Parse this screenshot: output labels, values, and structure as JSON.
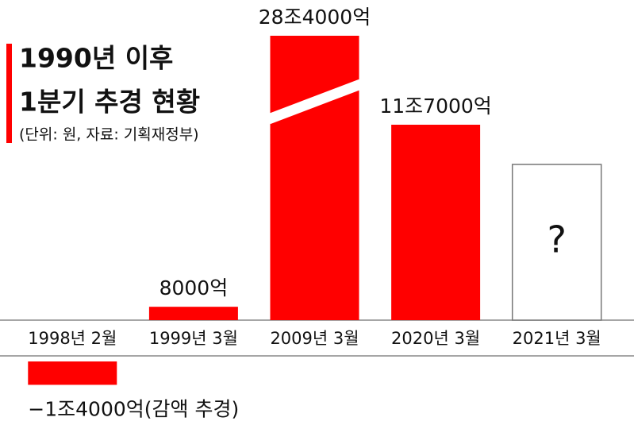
{
  "chart_data": {
    "type": "bar",
    "title": [
      "1990년 이후",
      "1분기 추경 현황"
    ],
    "subtitle": "(단위: 원, 자료: 기획재정부)",
    "categories": [
      "1998년 2월",
      "1999년 3월",
      "2009년 3월",
      "2020년 3월",
      "2021년 3월"
    ],
    "values": [
      -14000,
      8000,
      284000,
      117000,
      null
    ],
    "value_labels": [
      "−1조4000억(감액 추경)",
      "8000억",
      "28조4000억",
      "11조7000억",
      "?"
    ],
    "color": "#ff0000"
  }
}
